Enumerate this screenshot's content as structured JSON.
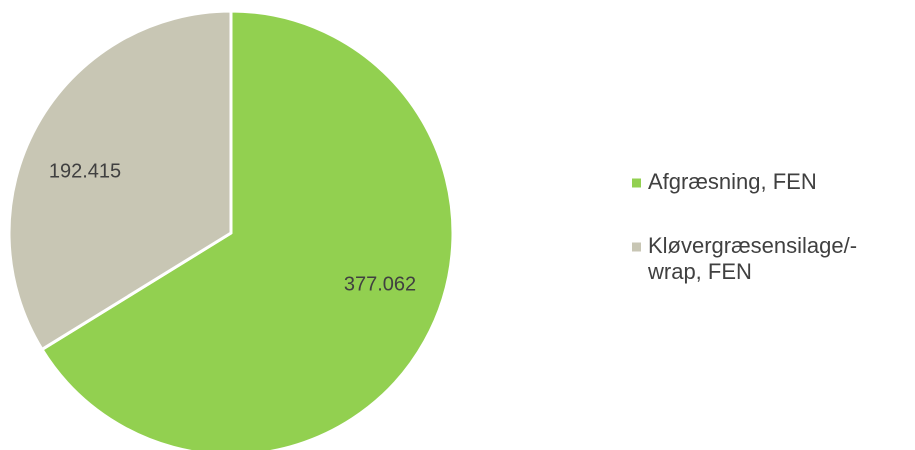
{
  "chart_data": {
    "type": "pie",
    "series": [
      {
        "name": "",
        "slices": [
          {
            "label": "Afgræsning, FEN",
            "value": 377062,
            "display": "377.062",
            "color": "#92d050"
          },
          {
            "label": "Kløvergræsensilage/-wrap, FEN",
            "value": 192415,
            "display": "192.415",
            "color": "#c8c6b4"
          }
        ]
      }
    ],
    "legend": {
      "position": "right",
      "items": [
        {
          "lines": [
            "Afgræsning, FEN"
          ],
          "color": "#92d050"
        },
        {
          "lines": [
            "Kløvergræsensilage/-",
            "wrap, FEN"
          ],
          "color": "#c8c6b4"
        }
      ]
    },
    "start_angle": "12 o'clock",
    "direction": "clockwise",
    "border_color": "#ffffff"
  }
}
